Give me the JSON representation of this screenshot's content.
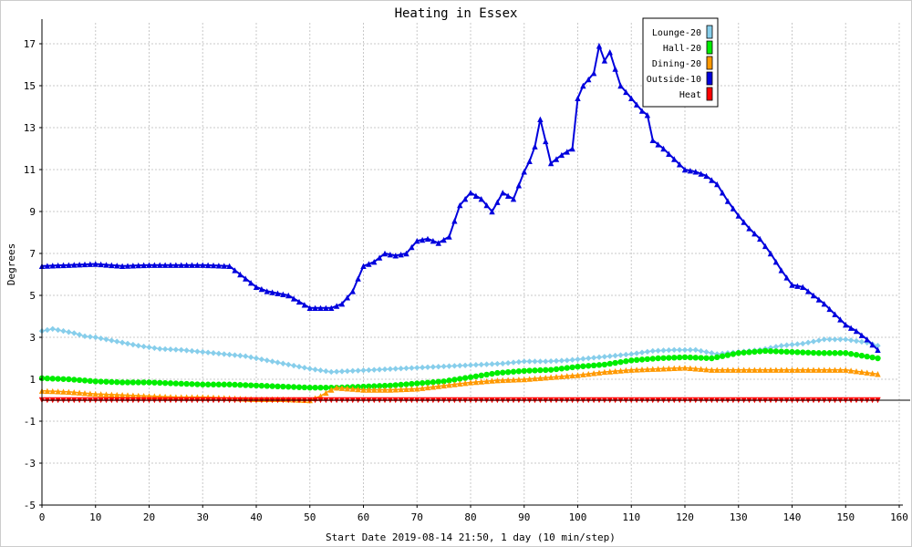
{
  "chart_data": {
    "type": "line",
    "title": "Heating in Essex",
    "xlabel": "Start Date 2019-08-14 21:50, 1 day (10 min/step)",
    "ylabel": "Degrees",
    "xlim": [
      0,
      160
    ],
    "ylim": [
      -5,
      18
    ],
    "xticks": [
      "0",
      "10",
      "20",
      "30",
      "40",
      "50",
      "60",
      "70",
      "80",
      "90",
      "100",
      "110",
      "120",
      "130",
      "140",
      "150",
      "160"
    ],
    "yticks": [
      "-5",
      "-3",
      "-1",
      "1",
      "3",
      "5",
      "7",
      "9",
      "11",
      "13",
      "15",
      "17"
    ],
    "grid": true,
    "legend_position": "top-right",
    "series": [
      {
        "name": "Lounge-20",
        "color": "#87ceeb",
        "marker": "diamond",
        "x": [
          0,
          2,
          4,
          6,
          8,
          10,
          14,
          18,
          22,
          26,
          30,
          34,
          38,
          42,
          46,
          50,
          54,
          58,
          62,
          66,
          70,
          74,
          78,
          82,
          86,
          90,
          94,
          98,
          102,
          106,
          110,
          114,
          118,
          122,
          126,
          130,
          134,
          138,
          142,
          146,
          150,
          154,
          156
        ],
        "y": [
          3.3,
          3.4,
          3.3,
          3.2,
          3.05,
          3.0,
          2.8,
          2.6,
          2.45,
          2.4,
          2.3,
          2.2,
          2.1,
          1.9,
          1.7,
          1.5,
          1.35,
          1.4,
          1.45,
          1.5,
          1.55,
          1.6,
          1.65,
          1.7,
          1.75,
          1.85,
          1.85,
          1.9,
          2.0,
          2.1,
          2.2,
          2.35,
          2.4,
          2.4,
          2.2,
          2.3,
          2.4,
          2.6,
          2.7,
          2.9,
          2.9,
          2.75,
          2.6
        ]
      },
      {
        "name": "Hall-20",
        "color": "#00ee00",
        "marker": "circle",
        "x": [
          0,
          5,
          10,
          15,
          20,
          25,
          30,
          35,
          40,
          45,
          50,
          55,
          60,
          65,
          70,
          75,
          80,
          85,
          90,
          95,
          100,
          105,
          110,
          115,
          120,
          125,
          130,
          135,
          140,
          145,
          150,
          156
        ],
        "y": [
          1.05,
          1.0,
          0.9,
          0.85,
          0.85,
          0.8,
          0.75,
          0.75,
          0.7,
          0.65,
          0.6,
          0.6,
          0.65,
          0.7,
          0.8,
          0.9,
          1.1,
          1.3,
          1.4,
          1.45,
          1.6,
          1.7,
          1.9,
          2.0,
          2.05,
          2.0,
          2.25,
          2.35,
          2.3,
          2.25,
          2.25,
          2.0
        ]
      },
      {
        "name": "Dining-20",
        "color": "#ff9900",
        "marker": "triangle",
        "x": [
          0,
          5,
          10,
          15,
          20,
          25,
          30,
          35,
          40,
          45,
          50,
          52,
          54,
          55,
          60,
          65,
          70,
          75,
          80,
          85,
          90,
          95,
          100,
          105,
          110,
          115,
          120,
          125,
          130,
          135,
          140,
          145,
          150,
          156
        ],
        "y": [
          0.45,
          0.4,
          0.3,
          0.25,
          0.2,
          0.15,
          0.15,
          0.1,
          0.05,
          0.05,
          0.0,
          0.2,
          0.5,
          0.6,
          0.5,
          0.5,
          0.55,
          0.7,
          0.85,
          0.95,
          1.0,
          1.1,
          1.2,
          1.35,
          1.45,
          1.5,
          1.55,
          1.45,
          1.45,
          1.45,
          1.45,
          1.45,
          1.45,
          1.25
        ]
      },
      {
        "name": "Outside-10",
        "color": "#0000dd",
        "marker": "triangle",
        "x": [
          0,
          5,
          10,
          15,
          20,
          25,
          30,
          35,
          38,
          40,
          42,
          46,
          50,
          52,
          54,
          56,
          58,
          60,
          62,
          64,
          66,
          68,
          70,
          72,
          74,
          76,
          78,
          80,
          82,
          84,
          86,
          88,
          90,
          91,
          92,
          93,
          95,
          97,
          99,
          100,
          101,
          102,
          103,
          104,
          105,
          106,
          108,
          110,
          112,
          113,
          114,
          116,
          118,
          120,
          122,
          124,
          126,
          128,
          130,
          132,
          134,
          136,
          138,
          140,
          142,
          144,
          146,
          150,
          152,
          154,
          156
        ],
        "y": [
          6.4,
          6.45,
          6.5,
          6.4,
          6.45,
          6.45,
          6.45,
          6.4,
          5.8,
          5.4,
          5.2,
          5.0,
          4.4,
          4.4,
          4.4,
          4.6,
          5.2,
          6.4,
          6.6,
          7.0,
          6.9,
          7.0,
          7.6,
          7.7,
          7.5,
          7.8,
          9.3,
          9.9,
          9.6,
          9.0,
          9.9,
          9.6,
          10.9,
          11.4,
          12.1,
          13.4,
          11.3,
          11.7,
          12.0,
          14.4,
          15.0,
          15.3,
          15.6,
          16.9,
          16.2,
          16.6,
          15.0,
          14.4,
          13.8,
          13.6,
          12.4,
          12.0,
          11.5,
          11.0,
          10.9,
          10.7,
          10.3,
          9.5,
          8.8,
          8.2,
          7.7,
          7.0,
          6.2,
          5.5,
          5.4,
          5.0,
          4.6,
          3.6,
          3.3,
          2.9,
          2.4
        ]
      },
      {
        "name": "Heat",
        "color": "#ff0000",
        "marker": "triangle-down",
        "x": [
          0,
          156
        ],
        "y": [
          0,
          0
        ]
      }
    ]
  }
}
